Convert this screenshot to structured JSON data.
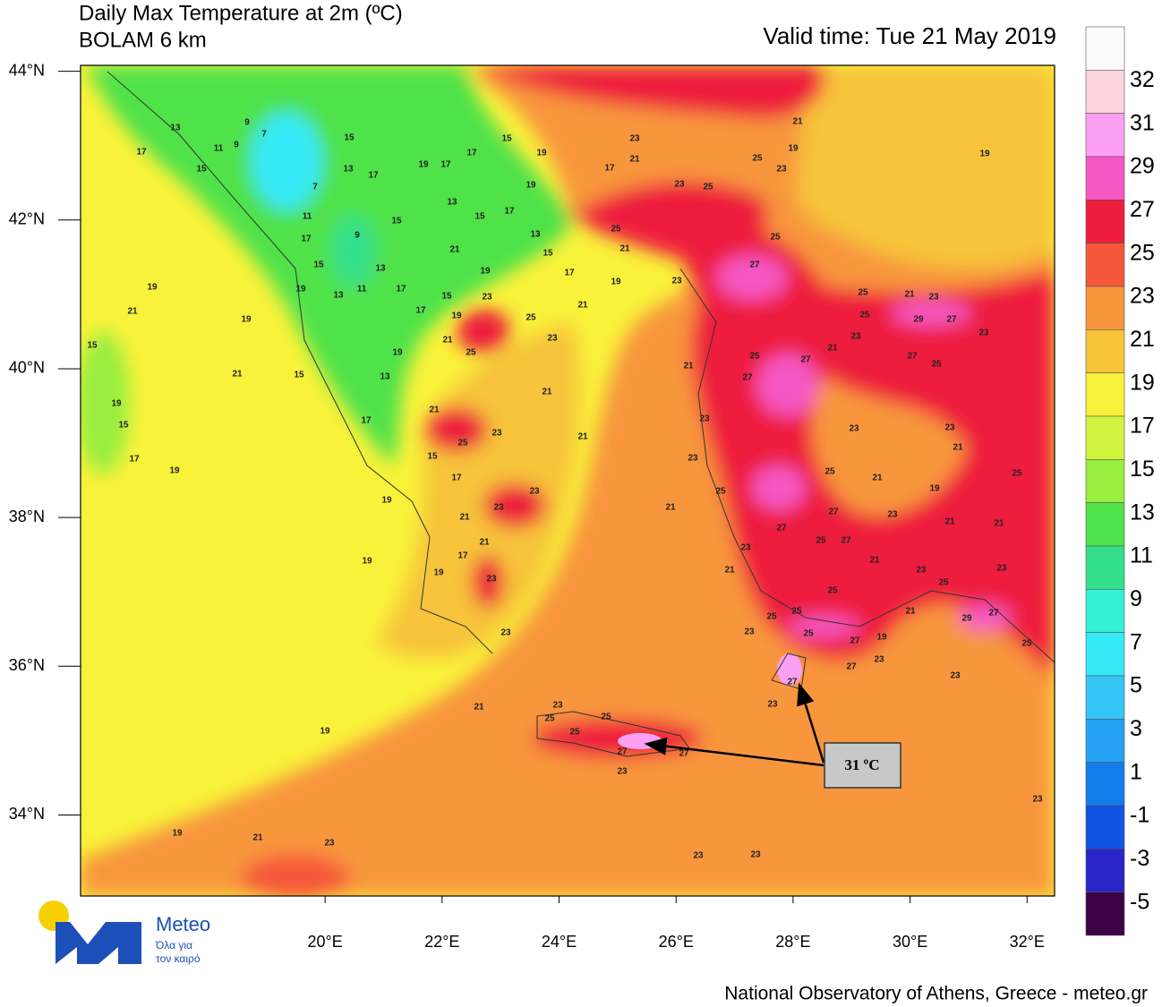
{
  "title": "Daily Max Temperature at 2m (ºC)",
  "subtitle": "BOLAM 6 km",
  "valid_time": "Valid time: Tue 21 May 2019",
  "map": {
    "xlim": [
      15.82,
      32.47
    ],
    "ylim": [
      32.91,
      44.08
    ],
    "xticks": [
      {
        "value": 20,
        "label": "20°E"
      },
      {
        "value": 22,
        "label": "22°E"
      },
      {
        "value": 24,
        "label": "24°E"
      },
      {
        "value": 26,
        "label": "26°E"
      },
      {
        "value": 28,
        "label": "28°E"
      },
      {
        "value": 30,
        "label": "30°E"
      },
      {
        "value": 32,
        "label": "32°E"
      }
    ],
    "yticks": [
      {
        "value": 44,
        "label": "44°N"
      },
      {
        "value": 42,
        "label": "42°N"
      },
      {
        "value": 40,
        "label": "40°N"
      },
      {
        "value": 38,
        "label": "38°N"
      },
      {
        "value": 36,
        "label": "36°N"
      },
      {
        "value": 34,
        "label": "34°N"
      }
    ]
  },
  "colorbar": {
    "levels": [
      32,
      31,
      29,
      27,
      25,
      23,
      21,
      19,
      17,
      15,
      13,
      11,
      9,
      7,
      5,
      3,
      1,
      -1,
      -3,
      -5
    ],
    "colors": [
      "#fbfbfb",
      "#fcd4dc",
      "#fca0f4",
      "#f558c4",
      "#ee1d3e",
      "#f6563a",
      "#f8963e",
      "#f7c43a",
      "#f9f23a",
      "#d2f43e",
      "#99ee3f",
      "#4fe24a",
      "#35e08d",
      "#35f2d6",
      "#35e9f8",
      "#35c6f6",
      "#26a2f2",
      "#127ceb",
      "#0f54e3",
      "#2a25c8",
      "#3c0245"
    ]
  },
  "contour_labels": [
    13,
    9,
    11,
    9,
    17,
    15,
    7,
    15,
    7,
    17,
    13,
    19,
    17,
    17,
    15,
    19,
    23,
    21,
    17,
    19,
    23,
    25,
    21,
    19,
    25,
    23,
    19,
    11,
    13,
    15,
    17,
    13,
    15,
    15,
    9,
    17,
    25,
    21,
    25,
    21,
    15,
    13,
    19,
    17,
    19,
    23,
    27,
    19,
    21,
    19,
    13,
    11,
    17,
    15,
    23,
    17,
    19,
    25,
    21,
    19,
    15,
    21,
    25,
    23,
    25,
    21,
    23,
    25,
    29,
    27,
    23,
    23,
    21,
    27,
    25,
    25,
    27,
    27,
    21,
    21,
    15,
    13,
    19,
    21,
    19,
    15,
    17,
    19,
    21,
    17,
    25,
    23,
    21,
    23,
    23,
    23,
    23,
    21,
    15,
    17,
    25,
    21,
    25,
    19,
    23,
    19,
    23,
    21,
    21,
    25,
    27,
    23,
    21,
    21,
    27,
    25,
    27,
    21,
    19,
    17,
    19,
    23,
    23,
    21,
    21,
    23,
    23,
    25,
    25,
    23,
    21,
    29,
    27,
    25,
    25,
    25,
    23,
    27,
    19,
    23,
    27,
    25,
    27,
    23,
    23,
    23,
    21,
    25,
    25,
    25,
    27,
    27,
    23,
    19,
    23,
    19,
    21,
    23,
    23,
    23
  ],
  "annotation": "31 ºC",
  "logo": {
    "name": "Meteo",
    "tagline": [
      "Όλα για",
      "τον καιρό"
    ]
  },
  "credit": "National Observatory of Athens, Greece - meteo.gr"
}
